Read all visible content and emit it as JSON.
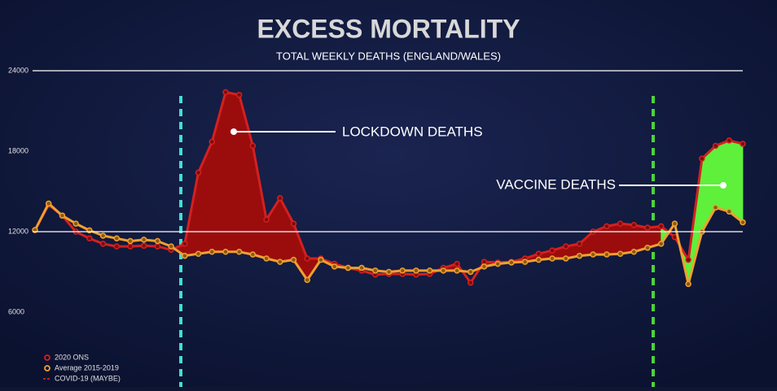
{
  "chart_data": {
    "type": "line",
    "title": "EXCESS MORTALITY",
    "subtitle": "TOTAL WEEKLY DEATHS (ENGLAND/WALES)",
    "ylim": [
      4000,
      24000
    ],
    "yticks": [
      6000,
      12000,
      18000,
      24000
    ],
    "grid": "alternate",
    "series": [
      {
        "name": "2020 ONS",
        "color": "#d42020",
        "values": [
          12120,
          14000,
          13200,
          12000,
          11500,
          11100,
          10900,
          10900,
          10950,
          10900,
          10650,
          11100,
          16400,
          18700,
          22400,
          22200,
          18400,
          12900,
          14500,
          12600,
          10000,
          10000,
          9600,
          9300,
          9100,
          8800,
          8850,
          8850,
          8800,
          8850,
          9300,
          9600,
          8200,
          9750,
          9700,
          9750,
          10000,
          10350,
          10600,
          10900,
          11100,
          12000,
          12400,
          12600,
          12500,
          12300,
          12400,
          11600,
          9900,
          17450,
          18400,
          18800,
          18550
        ]
      },
      {
        "name": "Average 2015-2019",
        "color": "#f0a030",
        "values": [
          12120,
          14100,
          13200,
          12600,
          12100,
          11700,
          11500,
          11300,
          11400,
          11300,
          10900,
          10200,
          10350,
          10500,
          10500,
          10500,
          10300,
          10000,
          9750,
          9900,
          8400,
          9900,
          9400,
          9300,
          9300,
          9100,
          9000,
          9100,
          9100,
          9100,
          9100,
          9100,
          9000,
          9400,
          9600,
          9700,
          9750,
          9900,
          10000,
          10000,
          10200,
          10300,
          10300,
          10350,
          10500,
          10800,
          11100,
          12600,
          8100,
          12000,
          13800,
          13500,
          12700
        ]
      }
    ],
    "extra_legend_entry": {
      "name": "COVID-19 (MAYBE)",
      "color": "#d42020"
    },
    "annotations": [
      "LOCKDOWN DEATHS",
      "VACCINE DEATHS"
    ]
  }
}
